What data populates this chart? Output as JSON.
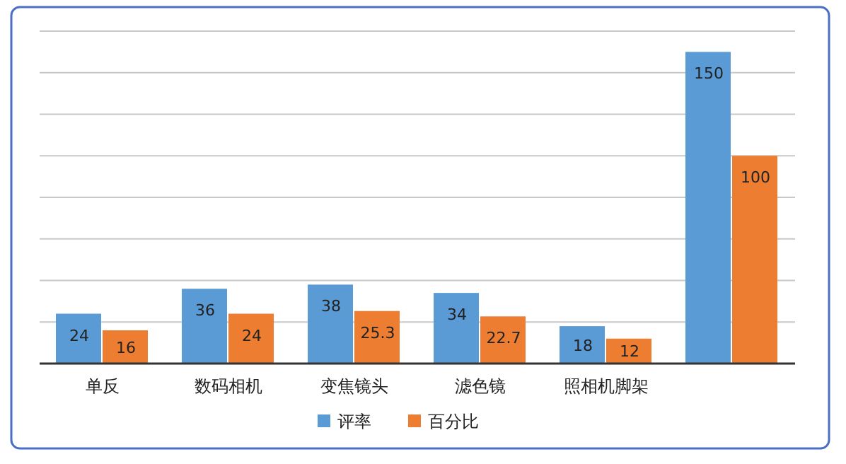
{
  "chart_data": {
    "type": "bar",
    "categories": [
      "单反",
      "数码相机",
      "变焦镜头",
      "滤色镜",
      "照相机脚架",
      null
    ],
    "series": [
      {
        "name": "评率",
        "color": "#5b9bd5",
        "values": [
          24,
          36,
          38,
          34,
          18,
          150
        ]
      },
      {
        "name": "百分比",
        "color": "#ed7d31",
        "values": [
          16,
          24,
          25.3,
          22.7,
          12,
          100
        ]
      }
    ],
    "ylim": [
      0,
      160
    ],
    "yticks": [
      {
        "value": 0,
        "label": null
      },
      {
        "value": 20,
        "label": null
      },
      {
        "value": 40,
        "label": null
      },
      {
        "value": 60,
        "label": null
      },
      {
        "value": 80,
        "label": null
      },
      {
        "value": 100,
        "label": null
      },
      {
        "value": 120,
        "label": null
      },
      {
        "value": 140,
        "label": null
      },
      {
        "value": 160,
        "label": null
      }
    ],
    "tick_labels": "x",
    "grid": "y",
    "data_labels": true,
    "legend": "bottom"
  }
}
